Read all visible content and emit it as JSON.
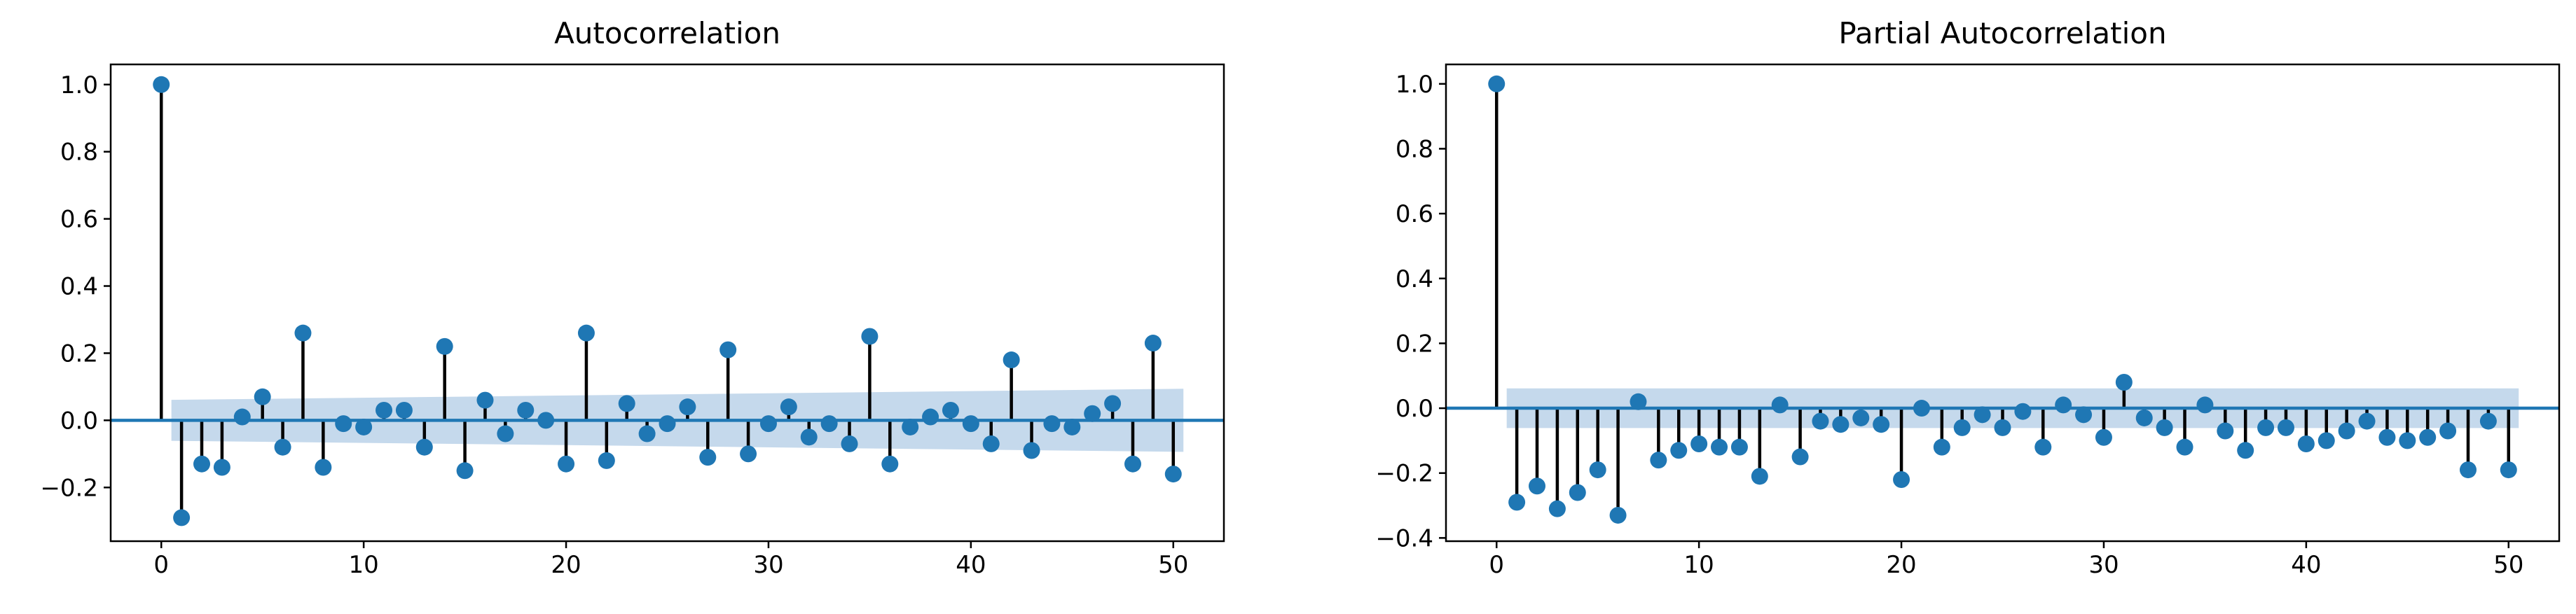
{
  "chart_data": [
    {
      "type": "stem",
      "title": "Autocorrelation",
      "xlabel": "",
      "ylabel": "",
      "xlim": [
        -2.5,
        52.5
      ],
      "ylim": [
        -0.36,
        1.06
      ],
      "xticks": [
        0,
        10,
        20,
        30,
        40,
        50
      ],
      "xtick_labels": [
        "0",
        "10",
        "20",
        "30",
        "40",
        "50"
      ],
      "yticks": [
        -0.2,
        0.0,
        0.2,
        0.4,
        0.6,
        0.8,
        1.0
      ],
      "ytick_labels": [
        "−0.2",
        "0.0",
        "0.2",
        "0.4",
        "0.6",
        "0.8",
        "1.0"
      ],
      "grid": false,
      "x": [
        0,
        1,
        2,
        3,
        4,
        5,
        6,
        7,
        8,
        9,
        10,
        11,
        12,
        13,
        14,
        15,
        16,
        17,
        18,
        19,
        20,
        21,
        22,
        23,
        24,
        25,
        26,
        27,
        28,
        29,
        30,
        31,
        32,
        33,
        34,
        35,
        36,
        37,
        38,
        39,
        40,
        41,
        42,
        43,
        44,
        45,
        46,
        47,
        48,
        49,
        50
      ],
      "values": [
        1.0,
        -0.29,
        -0.13,
        -0.14,
        0.01,
        0.07,
        -0.08,
        0.26,
        -0.14,
        -0.01,
        -0.02,
        0.03,
        0.03,
        -0.08,
        0.22,
        -0.15,
        0.06,
        -0.04,
        0.03,
        0.0,
        -0.13,
        0.26,
        -0.12,
        0.05,
        -0.04,
        -0.01,
        0.04,
        -0.11,
        0.21,
        -0.1,
        -0.01,
        0.04,
        -0.05,
        -0.01,
        -0.07,
        0.25,
        -0.13,
        -0.02,
        0.01,
        0.03,
        -0.01,
        -0.07,
        0.18,
        -0.09,
        -0.01,
        -0.02,
        0.02,
        0.05,
        -0.13,
        0.23,
        -0.16
      ],
      "confidence_band": {
        "x": [
          0.5,
          50.5
        ],
        "upper": [
          0.061,
          0.094
        ],
        "lower": [
          -0.061,
          -0.094
        ]
      },
      "colors": {
        "marker": "#1f77b4",
        "stem": "#000000",
        "baseline": "#1f77b4",
        "band": "#c5d9ec"
      }
    },
    {
      "type": "stem",
      "title": "Partial Autocorrelation",
      "xlabel": "",
      "ylabel": "",
      "xlim": [
        -2.5,
        52.5
      ],
      "ylim": [
        -0.41,
        1.06
      ],
      "xticks": [
        0,
        10,
        20,
        30,
        40,
        50
      ],
      "xtick_labels": [
        "0",
        "10",
        "20",
        "30",
        "40",
        "50"
      ],
      "yticks": [
        -0.4,
        -0.2,
        0.0,
        0.2,
        0.4,
        0.6,
        0.8,
        1.0
      ],
      "ytick_labels": [
        "−0.4",
        "−0.2",
        "0.0",
        "0.2",
        "0.4",
        "0.6",
        "0.8",
        "1.0"
      ],
      "grid": false,
      "x": [
        0,
        1,
        2,
        3,
        4,
        5,
        6,
        7,
        8,
        9,
        10,
        11,
        12,
        13,
        14,
        15,
        16,
        17,
        18,
        19,
        20,
        21,
        22,
        23,
        24,
        25,
        26,
        27,
        28,
        29,
        30,
        31,
        32,
        33,
        34,
        35,
        36,
        37,
        38,
        39,
        40,
        41,
        42,
        43,
        44,
        45,
        46,
        47,
        48,
        49,
        50
      ],
      "values": [
        1.0,
        -0.29,
        -0.24,
        -0.31,
        -0.26,
        -0.19,
        -0.33,
        0.02,
        -0.16,
        -0.13,
        -0.11,
        -0.12,
        -0.12,
        -0.21,
        0.01,
        -0.15,
        -0.04,
        -0.05,
        -0.03,
        -0.05,
        -0.22,
        0.0,
        -0.12,
        -0.06,
        -0.02,
        -0.06,
        -0.01,
        -0.12,
        0.01,
        -0.02,
        -0.09,
        0.08,
        -0.03,
        -0.06,
        -0.12,
        0.01,
        -0.07,
        -0.13,
        -0.06,
        -0.06,
        -0.11,
        -0.1,
        -0.07,
        -0.04,
        -0.09,
        -0.1,
        -0.09,
        -0.07,
        -0.19,
        -0.04,
        -0.19
      ],
      "confidence_band": {
        "x": [
          0.5,
          50.5
        ],
        "upper": [
          0.061,
          0.061
        ],
        "lower": [
          -0.061,
          -0.061
        ]
      },
      "colors": {
        "marker": "#1f77b4",
        "stem": "#000000",
        "baseline": "#1f77b4",
        "band": "#c5d9ec"
      }
    }
  ]
}
